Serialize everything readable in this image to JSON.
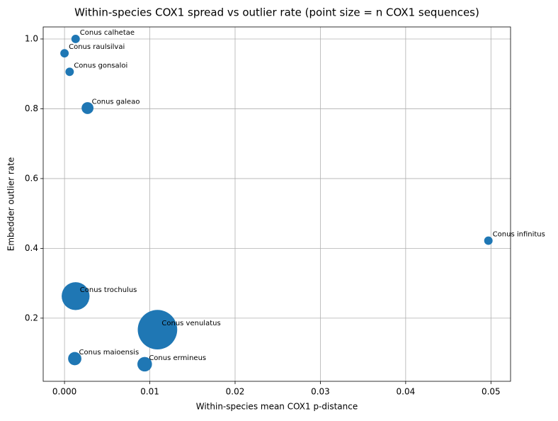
{
  "chart_data": {
    "type": "scatter",
    "title": "Within-species COX1 spread vs outlier rate (point size = n COX1 sequences)",
    "x_label": "Within-species mean COX1 p-distance",
    "y_label": "Embedder outlier rate",
    "color": "#1f77b4",
    "grid": true,
    "labels": [
      "Conus calhetae",
      "Conus raulsilvai",
      "Conus gonsaloi",
      "Conus galeao",
      "Conus infinitus",
      "Conus trochulus",
      "Conus venulatus",
      "Conus maioensis",
      "Conus ermineus"
    ],
    "x": [
      0.0013,
      0.0,
      0.0006,
      0.0027,
      0.0497,
      0.0013,
      0.0109,
      0.0012,
      0.0094
    ],
    "y": [
      1.0,
      0.959,
      0.906,
      0.802,
      0.422,
      0.263,
      0.167,
      0.084,
      0.068
    ],
    "sizes": [
      2,
      2,
      2,
      4,
      2,
      22,
      44,
      5,
      6
    ],
    "xlim": [
      -0.0025,
      0.0523
    ],
    "ylim": [
      0.019,
      1.0345
    ],
    "xticks": [
      {
        "value": 0,
        "label": "0.000"
      },
      0.01,
      0.02,
      0.03,
      0.04,
      0.05
    ],
    "yticks": [
      0.2,
      0.4,
      0.6,
      0.8,
      {
        "value": 1.0,
        "label": "1.0"
      }
    ]
  }
}
